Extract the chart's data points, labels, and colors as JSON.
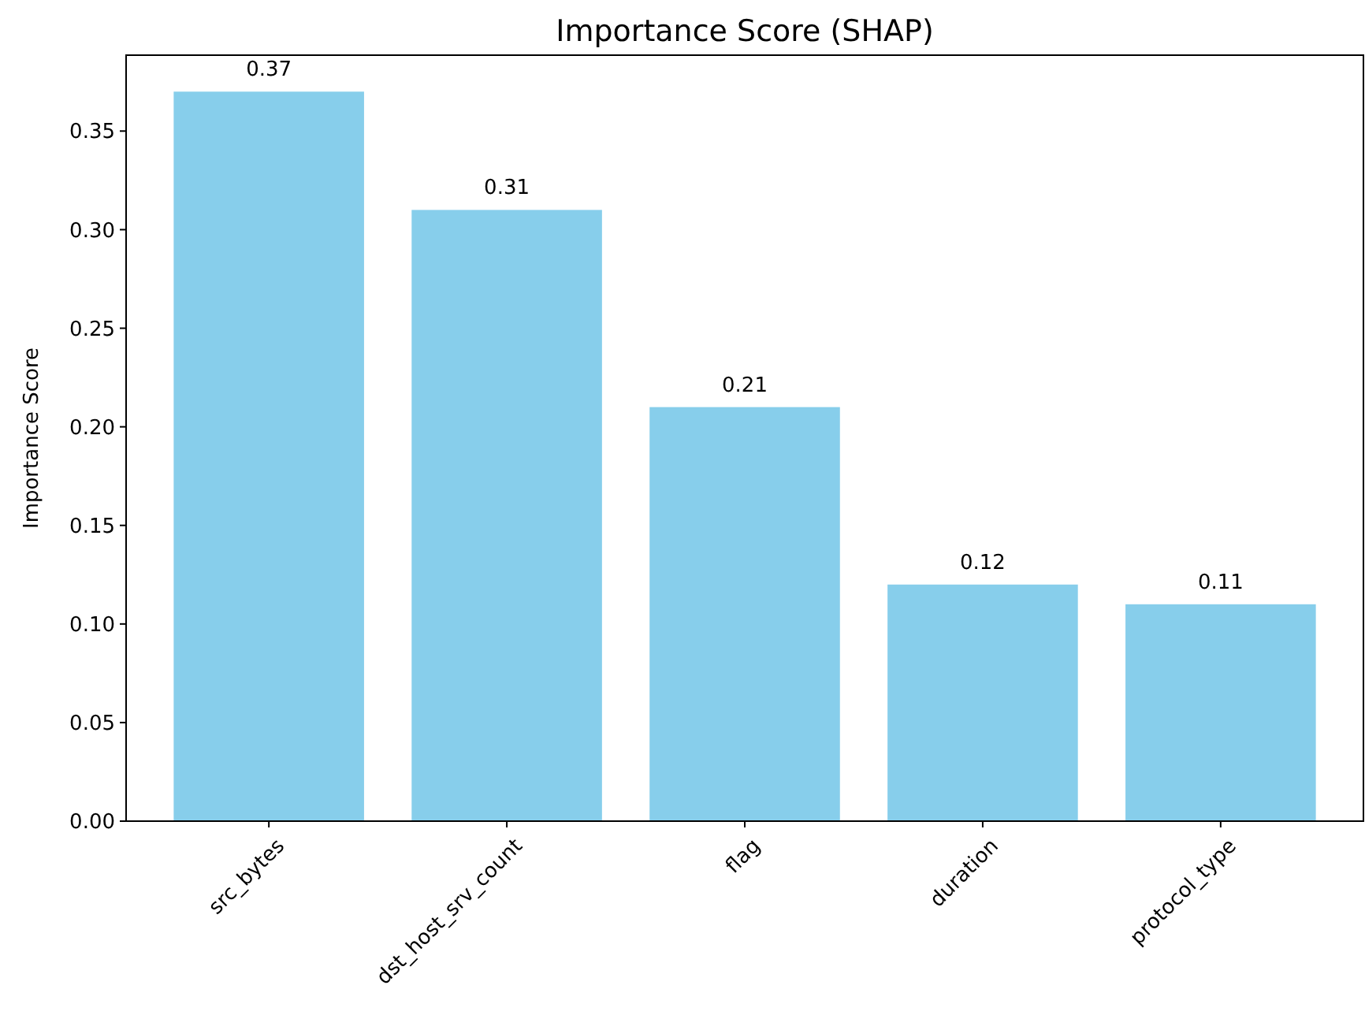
{
  "chart_data": {
    "type": "bar",
    "title": "Importance Score (SHAP)",
    "ylabel": "Importance Score",
    "categories": [
      "src_bytes",
      "dst_host_srv_count",
      "flag",
      "duration",
      "protocol_type"
    ],
    "values": [
      0.37,
      0.31,
      0.21,
      0.12,
      0.11
    ],
    "color": "#87ceeb",
    "ylim": [
      0,
      0.3885
    ],
    "yticks": [
      {
        "value": 0,
        "label": "0.00"
      },
      {
        "value": 0.05,
        "label": "0.05"
      },
      {
        "value": 0.1,
        "label": "0.10"
      },
      {
        "value": 0.15,
        "label": "0.15"
      },
      {
        "value": 0.2,
        "label": "0.20"
      },
      {
        "value": 0.25,
        "label": "0.25"
      },
      {
        "value": 0.3,
        "label": "0.30"
      },
      {
        "value": 0.35,
        "label": "0.35"
      }
    ],
    "data_labels": true,
    "grid": false
  }
}
